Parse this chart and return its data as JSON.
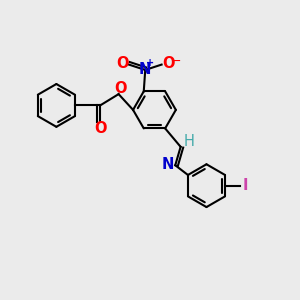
{
  "bg_color": "#ebebeb",
  "bond_color": "#000000",
  "lw": 1.5,
  "atom_colors": {
    "O": "#ff0000",
    "N_nitro": "#0000cc",
    "N_imine": "#0000cc",
    "I": "#cc44aa",
    "H": "#44aaaa",
    "C": "#000000"
  },
  "fs": 10.5
}
